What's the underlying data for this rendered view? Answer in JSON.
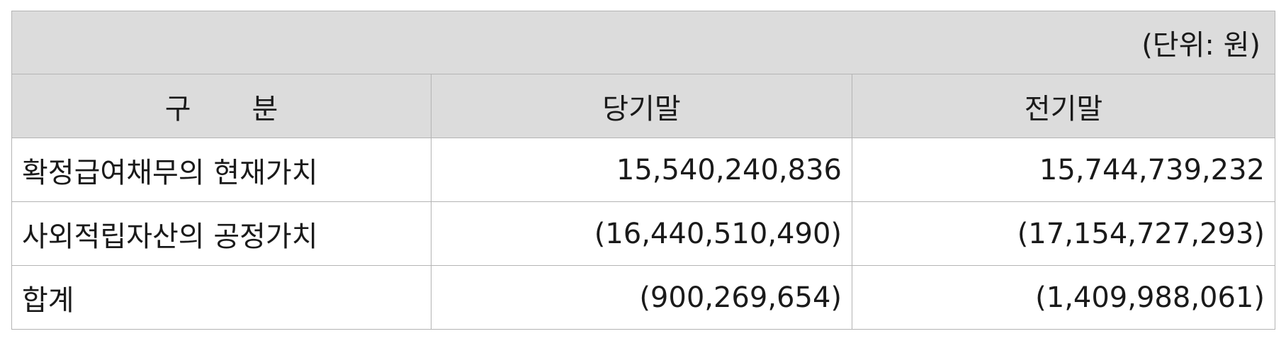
{
  "unit_label": "(단위: 원)",
  "header": {
    "col1_a": "구",
    "col1_b": "분",
    "col2": "당기말",
    "col3": "전기말"
  },
  "rows": [
    {
      "label": "확정급여채무의 현재가치",
      "current": "15,540,240,836",
      "prior": "15,744,739,232"
    },
    {
      "label": "사외적립자산의 공정가치",
      "current": "(16,440,510,490)",
      "prior": "(17,154,727,293)"
    },
    {
      "label": "합계",
      "current": "(900,269,654)",
      "prior": "(1,409,988,061)"
    }
  ]
}
